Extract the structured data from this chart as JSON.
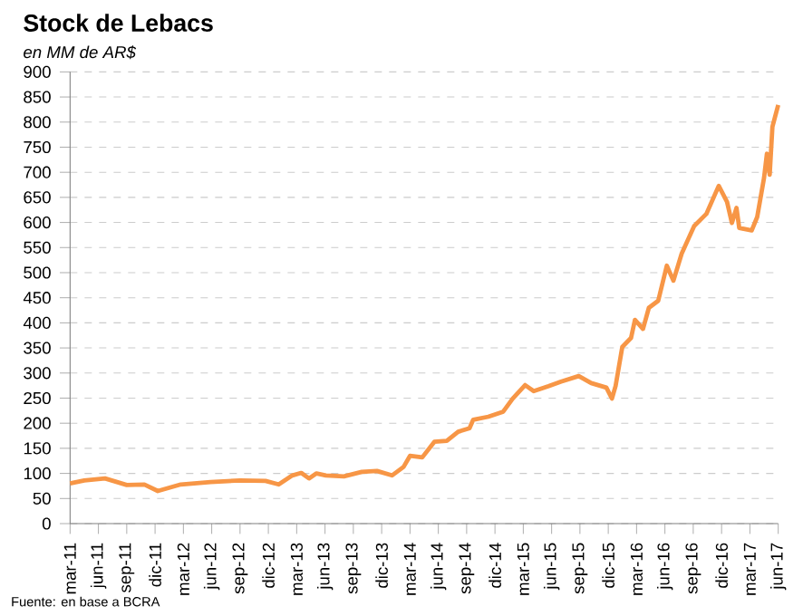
{
  "chart_data": {
    "type": "line",
    "title": "Stock de Lebacs",
    "subtitle": "*en MM de AR$*",
    "x": [
      "2011-03-01",
      "2011-04-16",
      "2011-06-22",
      "2011-09-01",
      "2011-10-28",
      "2011-12-10",
      "2012-02-22",
      "2012-05-28",
      "2012-09-01",
      "2012-11-22",
      "2013-01-04",
      "2013-02-16",
      "2013-03-16",
      "2013-04-10",
      "2013-05-04",
      "2013-06-04",
      "2013-08-01",
      "2013-09-28",
      "2013-11-16",
      "2014-01-04",
      "2014-02-10",
      "2014-03-01",
      "2014-04-10",
      "2014-05-19",
      "2014-06-28",
      "2014-08-04",
      "2014-09-10",
      "2014-09-22",
      "2014-11-10",
      "2014-12-28",
      "2015-01-28",
      "2015-03-07",
      "2015-04-04",
      "2015-05-22",
      "2015-07-01",
      "2015-08-28",
      "2015-10-07",
      "2015-11-25",
      "2015-12-13",
      "2015-12-25",
      "2016-01-16",
      "2016-02-13",
      "2016-02-25",
      "2016-03-22",
      "2016-04-10",
      "2016-05-10",
      "2016-06-07",
      "2016-06-28",
      "2016-07-25",
      "2016-09-04",
      "2016-10-13",
      "2016-11-22",
      "2016-12-19",
      "2017-01-04",
      "2017-01-19",
      "2017-01-28",
      "2017-03-07",
      "2017-03-25",
      "2017-04-16",
      "2017-04-25",
      "2017-05-04",
      "2017-05-13",
      "2017-06-01"
    ],
    "values": [
      80,
      86,
      90,
      77,
      78,
      65,
      78,
      83,
      86,
      85,
      78,
      96,
      101,
      90,
      100,
      96,
      94,
      103,
      105,
      96,
      113,
      135,
      132,
      163,
      165,
      183,
      190,
      207,
      213,
      223,
      249,
      276,
      264,
      274,
      283,
      294,
      280,
      271,
      249,
      274,
      352,
      370,
      406,
      388,
      430,
      444,
      514,
      484,
      538,
      593,
      617,
      673,
      641,
      599,
      629,
      589,
      584,
      611,
      689,
      737,
      695,
      791,
      834
    ],
    "color": "#f79646",
    "xlim": [
      "2011-03-01",
      "2017-06-01"
    ],
    "xticks": [
      {
        "value": "2011-03",
        "label": "mar-11"
      },
      {
        "value": "2011-06",
        "label": "jun-11"
      },
      {
        "value": "2011-09",
        "label": "sep-11"
      },
      {
        "value": "2011-12",
        "label": "dic-11"
      },
      {
        "value": "2012-03",
        "label": "mar-12"
      },
      {
        "value": "2012-06",
        "label": "jun-12"
      },
      {
        "value": "2012-09",
        "label": "sep-12"
      },
      {
        "value": "2012-12",
        "label": "dic-12"
      },
      {
        "value": "2013-03",
        "label": "mar-13"
      },
      {
        "value": "2013-06",
        "label": "jun-13"
      },
      {
        "value": "2013-09",
        "label": "sep-13"
      },
      {
        "value": "2013-12",
        "label": "dic-13"
      },
      {
        "value": "2014-03",
        "label": "mar-14"
      },
      {
        "value": "2014-06",
        "label": "jun-14"
      },
      {
        "value": "2014-09",
        "label": "sep-14"
      },
      {
        "value": "2014-12",
        "label": "dic-14"
      },
      {
        "value": "2015-03",
        "label": "mar-15"
      },
      {
        "value": "2015-06",
        "label": "jun-15"
      },
      {
        "value": "2015-09",
        "label": "sep-15"
      },
      {
        "value": "2015-12",
        "label": "dic-15"
      },
      {
        "value": "2016-03",
        "label": "mar-16"
      },
      {
        "value": "2016-06",
        "label": "jun-16"
      },
      {
        "value": "2016-09",
        "label": "sep-16"
      },
      {
        "value": "2016-12",
        "label": "dic-16"
      },
      {
        "value": "2017-03",
        "label": "mar-17"
      },
      {
        "value": "2017-06",
        "label": "jun-17"
      }
    ],
    "ylim": [
      0,
      900
    ],
    "yticks": [
      0,
      50,
      100,
      150,
      200,
      250,
      300,
      350,
      400,
      450,
      500,
      550,
      600,
      650,
      700,
      750,
      800,
      850,
      900
    ],
    "grid": "y",
    "marker": "none",
    "line_style": "solid",
    "annotations": [
      "Fuente: en base a BCRA"
    ]
  }
}
